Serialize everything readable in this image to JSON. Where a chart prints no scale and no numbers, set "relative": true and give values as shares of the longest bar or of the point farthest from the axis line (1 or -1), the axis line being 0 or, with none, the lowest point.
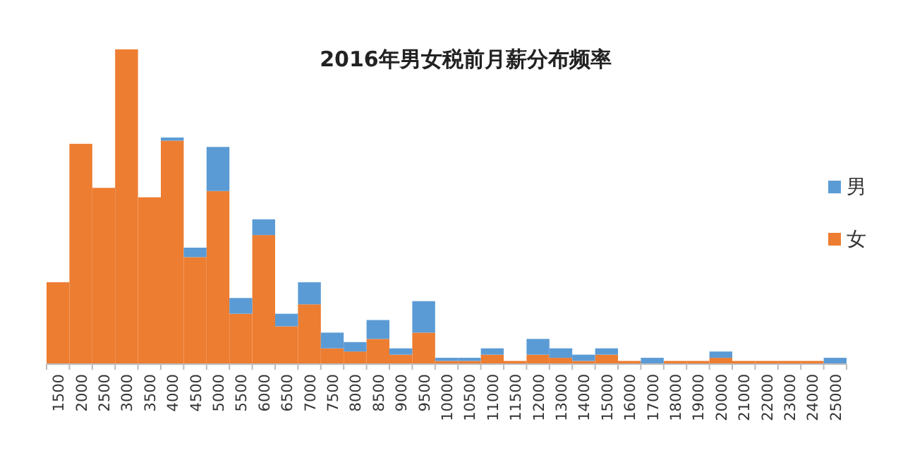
{
  "chart_data": {
    "type": "bar",
    "title": "2016年男女税前月薪分布频率",
    "stacked": true,
    "relative": true,
    "legend": "right",
    "categories": [
      "1500",
      "2000",
      "2500",
      "3000",
      "3500",
      "4000",
      "4500",
      "5000",
      "5500",
      "6000",
      "6500",
      "7000",
      "7500",
      "8000",
      "8500",
      "9000",
      "9500",
      "10000",
      "10500",
      "11000",
      "11500",
      "12000",
      "13000",
      "14000",
      "15000",
      "16000",
      "17000",
      "18000",
      "19000",
      "20000",
      "21000",
      "22000",
      "23000",
      "24000",
      "25000"
    ],
    "series": [
      {
        "name": "女",
        "color": "#ed7d31",
        "values": [
          0.26,
          0.7,
          0.56,
          1.0,
          0.53,
          0.71,
          0.34,
          0.55,
          0.16,
          0.41,
          0.12,
          0.19,
          0.05,
          0.04,
          0.08,
          0.03,
          0.1,
          0.01,
          0.01,
          0.03,
          0.01,
          0.03,
          0.02,
          0.01,
          0.03,
          0.01,
          0,
          0.01,
          0.01,
          0.02,
          0.01,
          0.01,
          0.01,
          0.01,
          0
        ]
      },
      {
        "name": "男",
        "color": "#5b9bd5",
        "values": [
          0,
          0,
          0,
          0,
          0,
          0.01,
          0.03,
          0.14,
          0.05,
          0.05,
          0.04,
          0.07,
          0.05,
          0.03,
          0.06,
          0.02,
          0.1,
          0.01,
          0.01,
          0.02,
          0,
          0.05,
          0.03,
          0.02,
          0.02,
          0,
          0.02,
          0,
          0,
          0.02,
          0,
          0,
          0,
          0,
          0.02
        ]
      }
    ]
  }
}
